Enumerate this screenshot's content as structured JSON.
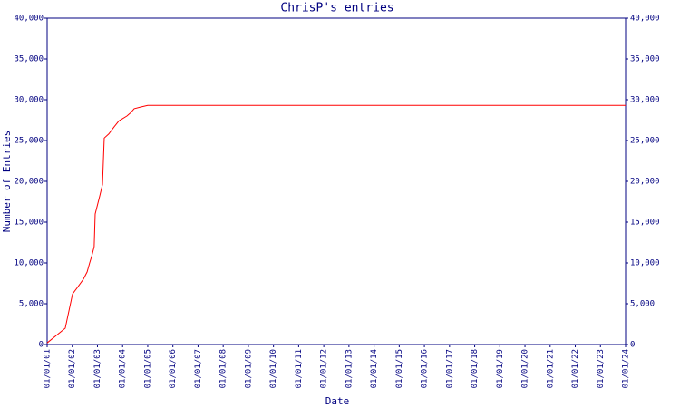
{
  "chart_data": {
    "type": "line",
    "title": "ChrisP's entries",
    "x_label": "Date",
    "y_label": "Number of Entries",
    "axis_color": "#000080",
    "x": [
      1.0,
      1.72,
      2.01,
      2.23,
      2.44,
      2.59,
      2.69,
      2.77,
      2.87,
      2.91,
      3.09,
      3.2,
      3.27,
      3.45,
      3.67,
      3.85,
      4.17,
      4.32,
      4.46,
      4.71,
      5.0,
      24
    ],
    "series": [
      {
        "name": "entries",
        "color": "#ff0000",
        "values": [
          200,
          2000,
          6200,
          7100,
          8000,
          8900,
          10000,
          10800,
          12000,
          16000,
          18200,
          19600,
          25300,
          25800,
          26700,
          27400,
          28000,
          28400,
          28900,
          29100,
          29300,
          29300
        ]
      }
    ],
    "xlim": [
      1,
      24
    ],
    "xticks": [
      {
        "value": 1,
        "label": "01/01/01"
      },
      {
        "value": 2,
        "label": "01/01/02"
      },
      {
        "value": 3,
        "label": "01/01/03"
      },
      {
        "value": 4,
        "label": "01/01/04"
      },
      {
        "value": 5,
        "label": "01/01/05"
      },
      {
        "value": 6,
        "label": "01/01/06"
      },
      {
        "value": 7,
        "label": "01/01/07"
      },
      {
        "value": 8,
        "label": "01/01/08"
      },
      {
        "value": 9,
        "label": "01/01/09"
      },
      {
        "value": 10,
        "label": "01/01/10"
      },
      {
        "value": 11,
        "label": "01/01/11"
      },
      {
        "value": 12,
        "label": "01/01/12"
      },
      {
        "value": 13,
        "label": "01/01/13"
      },
      {
        "value": 14,
        "label": "01/01/14"
      },
      {
        "value": 15,
        "label": "01/01/15"
      },
      {
        "value": 16,
        "label": "01/01/16"
      },
      {
        "value": 17,
        "label": "01/01/17"
      },
      {
        "value": 18,
        "label": "01/01/18"
      },
      {
        "value": 19,
        "label": "01/01/19"
      },
      {
        "value": 20,
        "label": "01/01/20"
      },
      {
        "value": 21,
        "label": "01/01/21"
      },
      {
        "value": 22,
        "label": "01/01/22"
      },
      {
        "value": 23,
        "label": "01/01/23"
      },
      {
        "value": 24,
        "label": "01/01/24"
      }
    ],
    "ylim": [
      0,
      40000
    ],
    "yticks": [
      0,
      {
        "value": 5000,
        "label": "5,000"
      },
      {
        "value": 10000,
        "label": "10,000"
      },
      {
        "value": 15000,
        "label": "15,000"
      },
      {
        "value": 20000,
        "label": "20,000"
      },
      {
        "value": 25000,
        "label": "25,000"
      },
      {
        "value": 30000,
        "label": "30,000"
      },
      {
        "value": 35000,
        "label": "35,000"
      },
      {
        "value": 40000,
        "label": "40,000"
      }
    ],
    "y2lim": [
      0,
      40000
    ],
    "y2ticks": [
      0,
      {
        "value": 5000,
        "label": "5,000"
      },
      {
        "value": 10000,
        "label": "10,000"
      },
      {
        "value": 15000,
        "label": "15,000"
      },
      {
        "value": 20000,
        "label": "20,000"
      },
      {
        "value": 25000,
        "label": "25,000"
      },
      {
        "value": 30000,
        "label": "30,000"
      },
      {
        "value": 35000,
        "label": "35,000"
      },
      {
        "value": 40000,
        "label": "40,000"
      }
    ]
  }
}
